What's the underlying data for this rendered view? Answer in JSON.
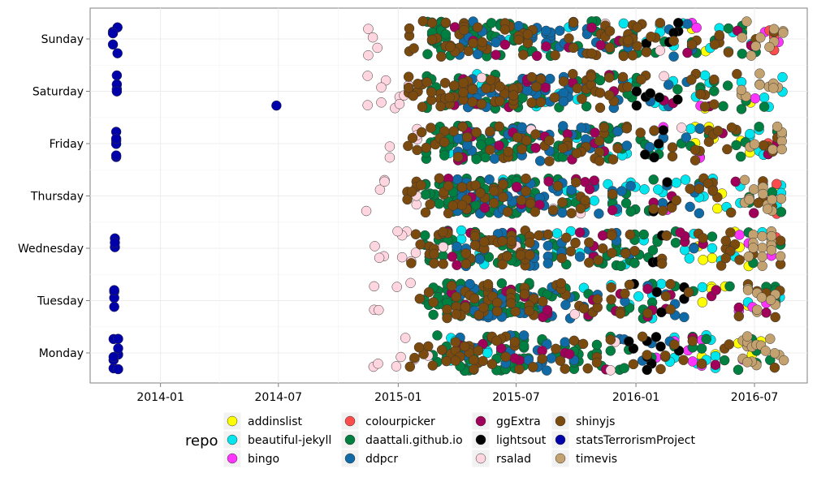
{
  "chart_data": {
    "type": "scatter",
    "title": "",
    "xlabel": "",
    "ylabel": "",
    "y_categories": [
      "Monday",
      "Tuesday",
      "Wednesday",
      "Thursday",
      "Friday",
      "Saturday",
      "Sunday"
    ],
    "x_ticks": [
      "2014-01",
      "2014-07",
      "2015-01",
      "2015-07",
      "2016-01",
      "2016-07"
    ],
    "xlim": [
      "2013-09-15",
      "2016-09-20"
    ],
    "grid": true,
    "legend": {
      "title": "repo",
      "position": "bottom"
    },
    "series": [
      {
        "name": "addinslist",
        "color": "#FFFF00",
        "periods": [
          [
            "2016-03-20",
            "2016-05-20",
            22
          ],
          [
            "2016-06-01",
            "2016-08-10",
            14
          ]
        ]
      },
      {
        "name": "beautiful-jekyll",
        "color": "#00E5EE",
        "periods": [
          [
            "2015-03-15",
            "2015-06-30",
            40
          ],
          [
            "2015-08-01",
            "2016-01-15",
            45
          ],
          [
            "2016-01-15",
            "2016-08-15",
            70
          ]
        ]
      },
      {
        "name": "bingo",
        "color": "#FF33FF",
        "periods": [
          [
            "2016-02-01",
            "2016-04-15",
            12
          ],
          [
            "2016-06-01",
            "2016-08-10",
            12
          ]
        ]
      },
      {
        "name": "colourpicker",
        "color": "#FF4D4D",
        "periods": [
          [
            "2016-07-20",
            "2016-08-15",
            10
          ]
        ]
      },
      {
        "name": "daattali.github.io",
        "color": "#008040",
        "periods": [
          [
            "2015-02-10",
            "2015-07-31",
            380
          ],
          [
            "2015-08-01",
            "2016-02-15",
            150
          ],
          [
            "2016-02-15",
            "2016-08-15",
            60
          ]
        ]
      },
      {
        "name": "ddpcr",
        "color": "#0F6AA5",
        "periods": [
          [
            "2015-04-01",
            "2015-09-30",
            190
          ],
          [
            "2015-10-01",
            "2016-04-15",
            70
          ]
        ]
      },
      {
        "name": "ggExtra",
        "color": "#A0005A",
        "periods": [
          [
            "2015-03-15",
            "2015-10-31",
            80
          ],
          [
            "2015-11-01",
            "2016-08-15",
            40
          ]
        ]
      },
      {
        "name": "lightsout",
        "color": "#000000",
        "periods": [
          [
            "2015-12-20",
            "2016-03-15",
            35
          ]
        ]
      },
      {
        "name": "rsalad",
        "color": "#FFD6E0",
        "periods": [
          [
            "2014-11-10",
            "2015-01-31",
            48
          ],
          [
            "2015-02-01",
            "2016-03-15",
            15
          ]
        ]
      },
      {
        "name": "shinyjs",
        "color": "#7A4A0F",
        "periods": [
          [
            "2015-01-15",
            "2015-07-31",
            260
          ],
          [
            "2015-08-01",
            "2016-08-15",
            220
          ]
        ]
      },
      {
        "name": "statsTerrorismProject",
        "color": "#0000AA",
        "periods": [
          [
            "2013-10-20",
            "2013-10-28",
            30
          ],
          [
            "2014-06-28",
            "2014-06-30",
            1
          ]
        ]
      },
      {
        "name": "timevis",
        "color": "#C4A26F",
        "periods": [
          [
            "2016-06-10",
            "2016-08-15",
            80
          ]
        ]
      }
    ]
  }
}
